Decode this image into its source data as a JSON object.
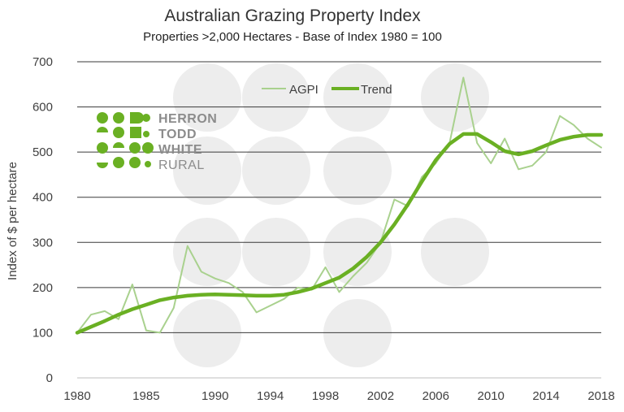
{
  "logo": {
    "lines": [
      "HERRON",
      "TODD",
      "WHITE",
      "RURAL"
    ],
    "accent_color": "#6ab023",
    "text_color": "#8c8c8c"
  },
  "chart_data": {
    "type": "line",
    "title": "Australian Grazing Property Index",
    "subtitle": "Properties >2,000 Hectares - Base of Index 1980 = 100",
    "xlabel": "",
    "ylabel": "Index of $ per hectare",
    "xlim": [
      1980,
      2018
    ],
    "ylim": [
      0,
      700
    ],
    "x_ticks": [
      "1980",
      "1985",
      "1990",
      "1994",
      "1998",
      "2002",
      "2006",
      "2010",
      "2014",
      "2018"
    ],
    "y_ticks": [
      "0",
      "100",
      "200",
      "300",
      "400",
      "500",
      "600",
      "700"
    ],
    "grid": "horizontal",
    "legend_position": "top-center",
    "x": [
      1980,
      1981,
      1982,
      1983,
      1984,
      1985,
      1986,
      1987,
      1988,
      1989,
      1990,
      1991,
      1992,
      1993,
      1994,
      1995,
      1996,
      1997,
      1998,
      1999,
      2000,
      2001,
      2002,
      2003,
      2004,
      2005,
      2006,
      2007,
      2008,
      2009,
      2010,
      2011,
      2012,
      2013,
      2014,
      2015,
      2016,
      2017,
      2018
    ],
    "series": [
      {
        "name": "AGPI",
        "color": "#a9d18e",
        "values": [
          100,
          140,
          148,
          130,
          207,
          105,
          100,
          155,
          292,
          235,
          220,
          210,
          190,
          145,
          160,
          175,
          200,
          195,
          245,
          190,
          225,
          255,
          300,
          395,
          380,
          445,
          475,
          520,
          665,
          520,
          475,
          530,
          462,
          470,
          500,
          580,
          560,
          530,
          510
        ]
      },
      {
        "name": "Trend",
        "color": "#6ab023",
        "values": [
          100,
          113,
          126,
          140,
          152,
          162,
          172,
          178,
          182,
          184,
          185,
          184,
          183,
          182,
          182,
          184,
          190,
          198,
          210,
          222,
          242,
          268,
          300,
          340,
          385,
          435,
          482,
          518,
          540,
          540,
          522,
          502,
          495,
          502,
          515,
          527,
          534,
          538,
          538
        ]
      }
    ]
  }
}
